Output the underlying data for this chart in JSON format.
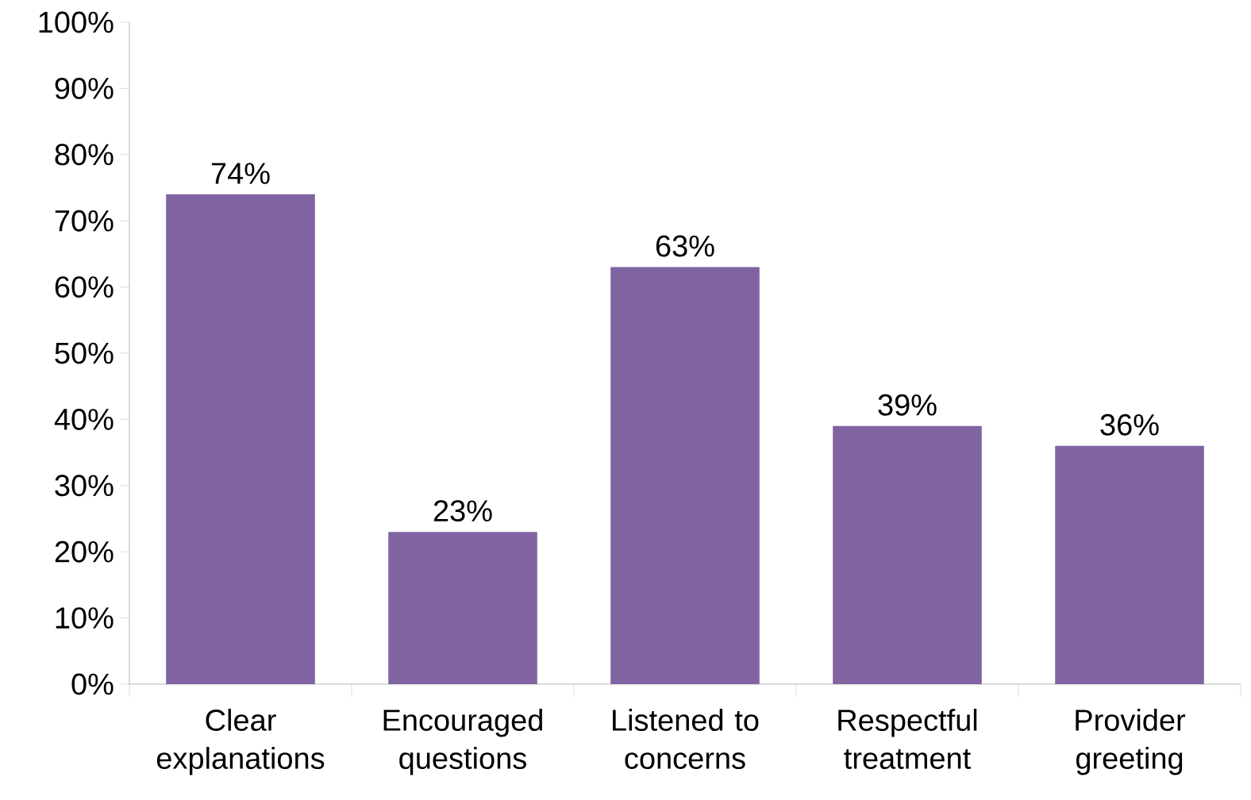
{
  "chart_data": {
    "type": "bar",
    "categories": [
      "Clear explanations",
      "Encouraged questions",
      "Listened to concerns",
      "Respectful treatment",
      "Provider greeting"
    ],
    "values": [
      74,
      23,
      63,
      39,
      36
    ],
    "value_labels": [
      "74%",
      "23%",
      "63%",
      "39%",
      "36%"
    ],
    "color": "#8064a2",
    "ylim": [
      0,
      100
    ],
    "yticks": [
      {
        "value": 0,
        "label": "0%"
      },
      {
        "value": 10,
        "label": "10%"
      },
      {
        "value": 20,
        "label": "20%"
      },
      {
        "value": 30,
        "label": "30%"
      },
      {
        "value": 40,
        "label": "40%"
      },
      {
        "value": 50,
        "label": "50%"
      },
      {
        "value": 60,
        "label": "60%"
      },
      {
        "value": 70,
        "label": "70%"
      },
      {
        "value": 80,
        "label": "80%"
      },
      {
        "value": 90,
        "label": "90%"
      },
      {
        "value": 100,
        "label": "100%"
      }
    ]
  }
}
